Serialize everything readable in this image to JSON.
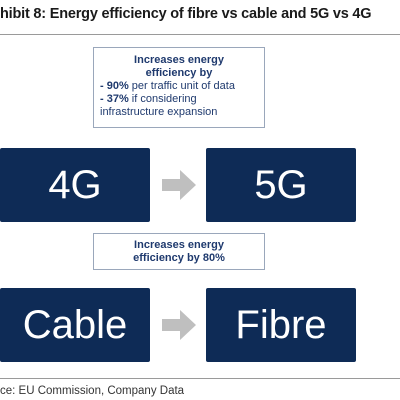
{
  "title": "hibit 8: Energy efficiency of fibre vs cable and 5G vs 4G",
  "note_top": {
    "heading_line1": "Increases energy",
    "heading_line2": "efficiency by",
    "item1_value": "- 90%",
    "item1_text": " per traffic unit of data",
    "item2_value": "- 37%",
    "item2_text": " if considering",
    "item2_cont": "infrastructure expansion"
  },
  "note_bottom": {
    "line1": "Increases energy",
    "line2": "efficiency by 80%"
  },
  "row1": {
    "from": "4G",
    "to": "5G"
  },
  "row2": {
    "from": "Cable",
    "to": "Fibre"
  },
  "source": "ce: EU Commission, Company Data",
  "colors": {
    "box_fill": "#0e2b56",
    "note_text": "#1f3a6e",
    "arrow": "#bfbfbf"
  }
}
